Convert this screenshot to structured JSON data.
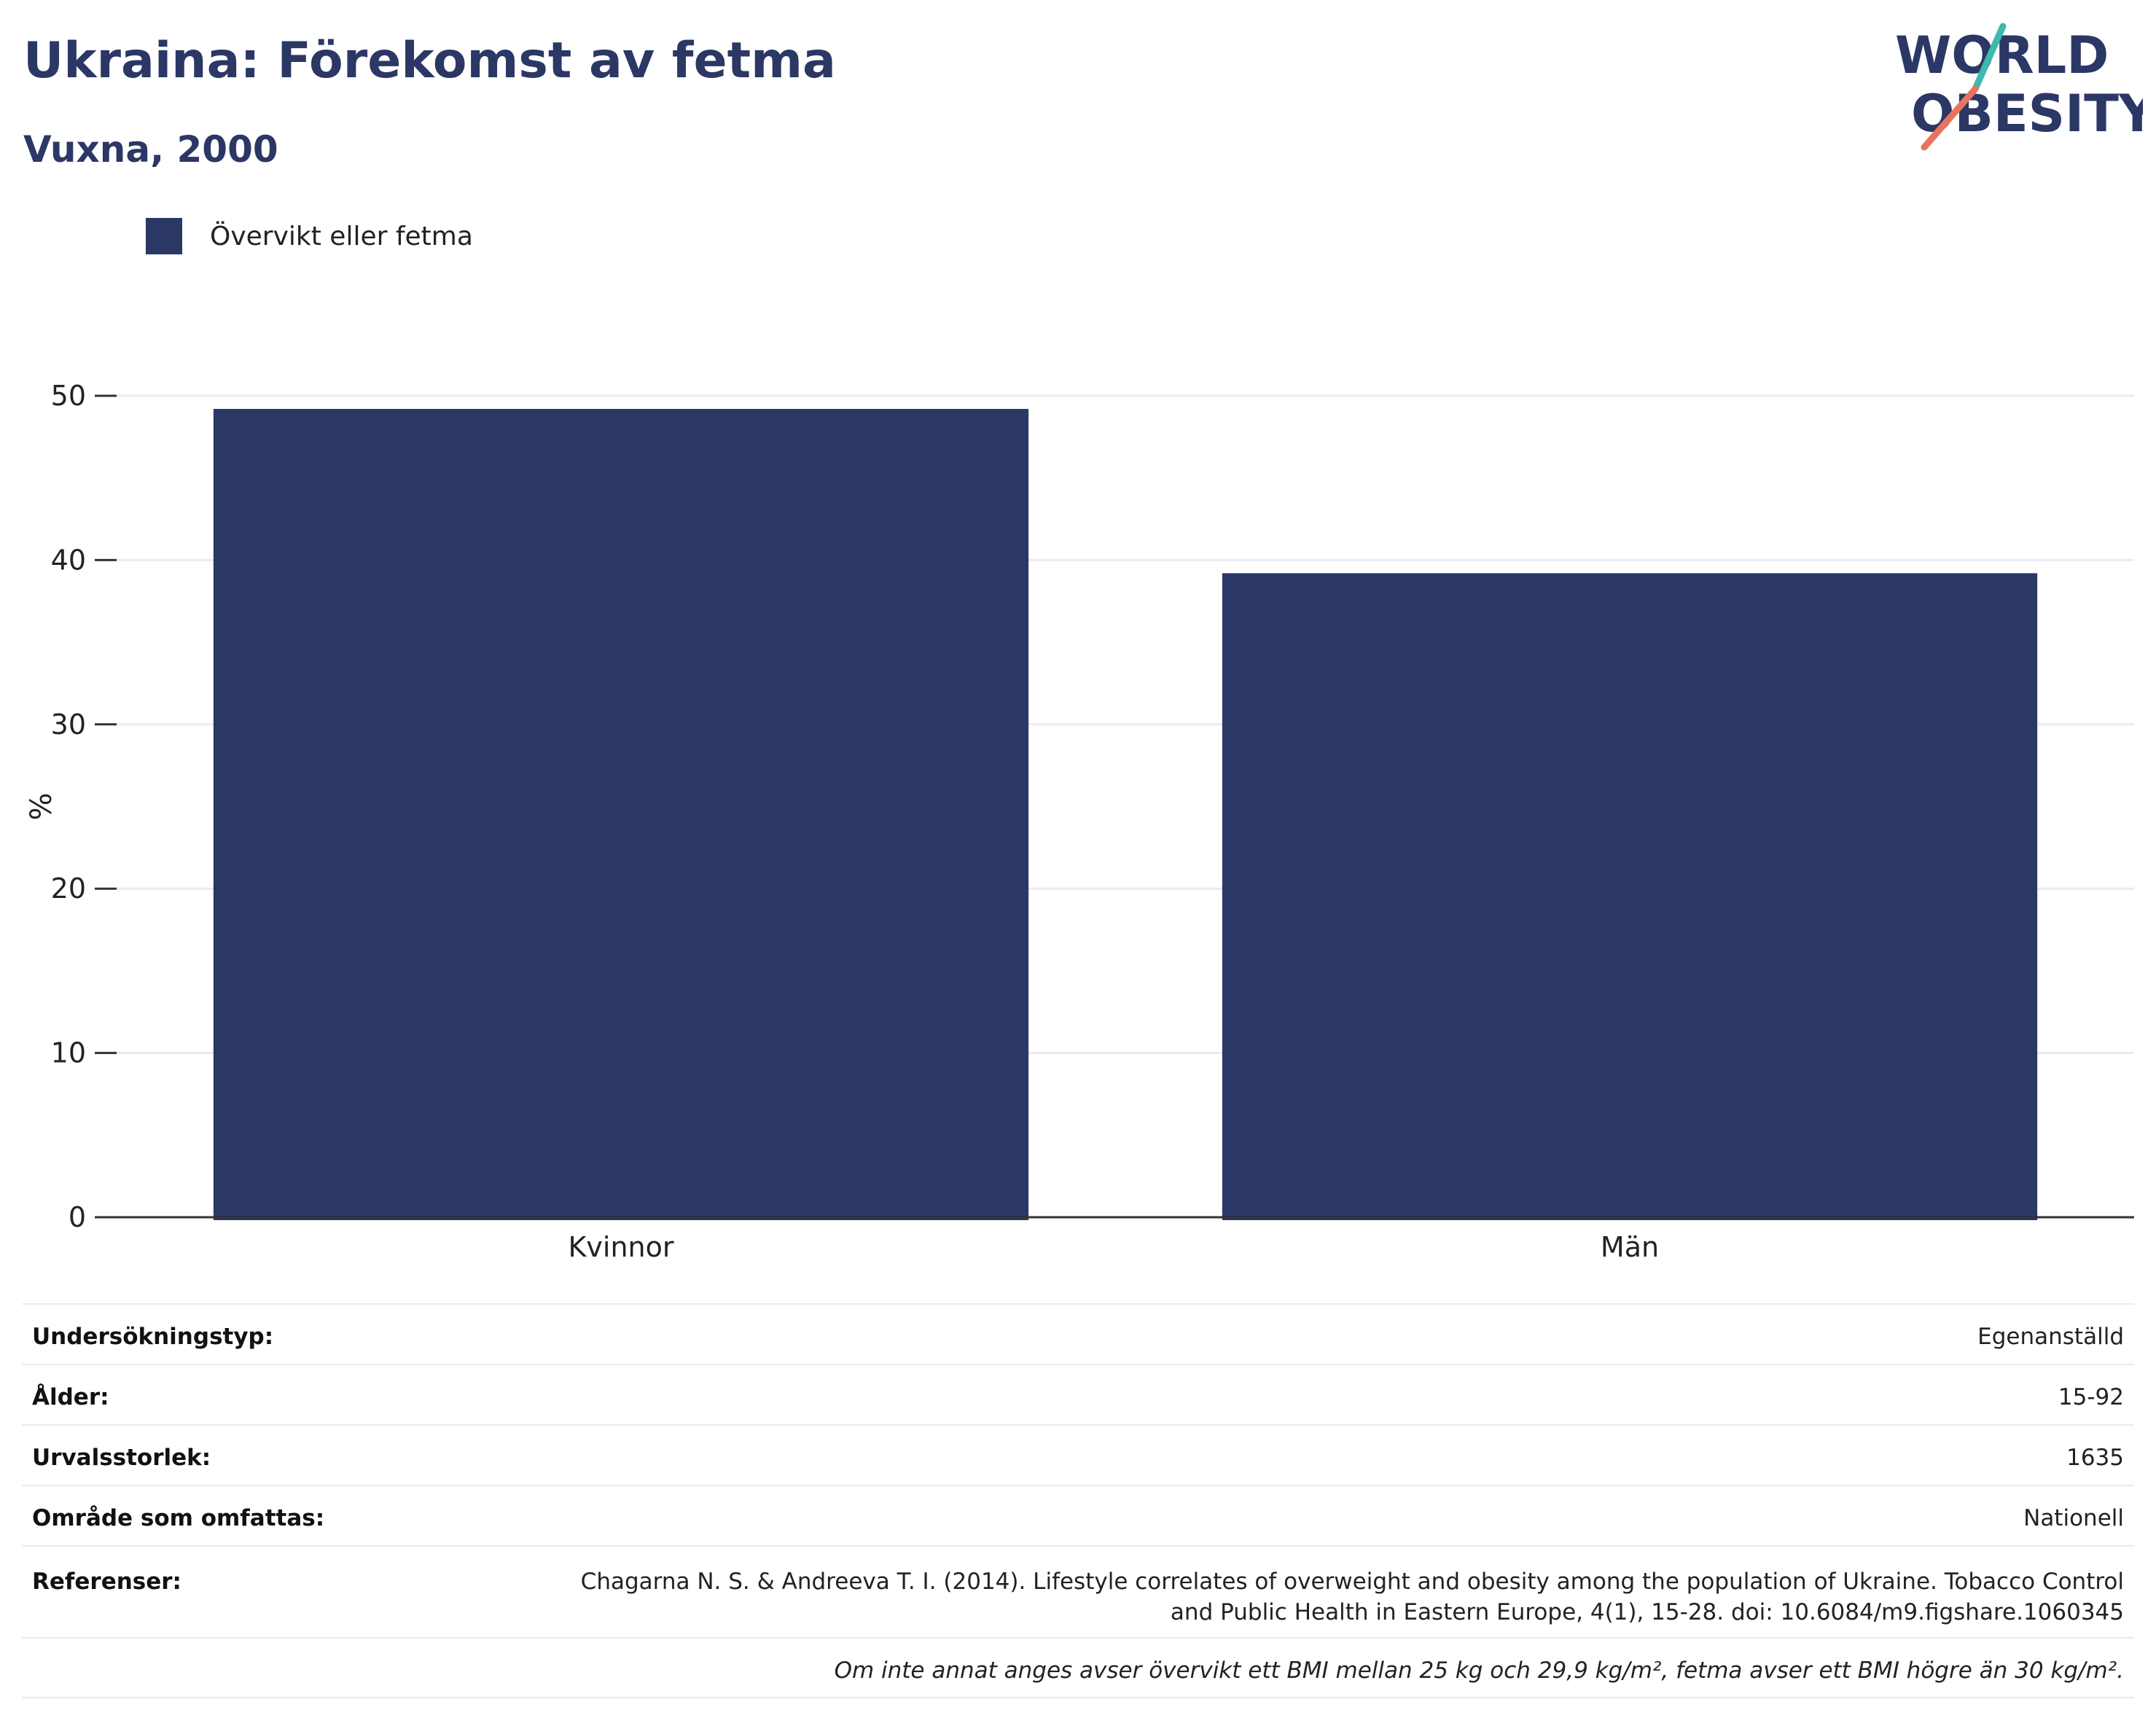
{
  "header": {
    "title": "Ukraina: Förekomst av fetma",
    "subtitle": "Vuxna, 2000"
  },
  "logo": {
    "line1": "WORLD",
    "line2": "OBESITY",
    "colors": {
      "text": "#2b3764",
      "slash_top": "#3fb8b0",
      "slash_bottom": "#e8735f"
    }
  },
  "legend": {
    "items": [
      {
        "label": "Övervikt eller fetma",
        "color": "#2b3764"
      }
    ]
  },
  "chart_data": {
    "type": "bar",
    "categories": [
      "Kvinnor",
      "Män"
    ],
    "series": [
      {
        "name": "Övervikt eller fetma",
        "values": [
          49.2,
          39.2
        ],
        "color": "#2b3764"
      }
    ],
    "ylabel": "%",
    "xlabel": "",
    "ylim": [
      0,
      50
    ],
    "yticks": [
      0,
      10,
      20,
      30,
      40,
      50
    ],
    "grid": true,
    "legend_position": "top-left"
  },
  "meta": {
    "rows": [
      {
        "key": "Undersökningstyp:",
        "value": "Egenanställd"
      },
      {
        "key": "Ålder:",
        "value": "15-92"
      },
      {
        "key": "Urvalsstorlek:",
        "value": "1635"
      },
      {
        "key": "Område som omfattas:",
        "value": "Nationell"
      }
    ],
    "references_key": "Referenser:",
    "references_line1": "Chagarna N. S. & Andreeva T. I. (2014). Lifestyle correlates of overweight and obesity among the population of Ukraine. Tobacco Control",
    "references_line2": "and Public Health in Eastern Europe, 4(1), 15-28. doi: 10.6084/m9.figshare.1060345",
    "note": "Om inte annat anges avser övervikt ett BMI mellan 25 kg och 29,9 kg/m², fetma avser ett BMI högre än 30 kg/m²."
  }
}
